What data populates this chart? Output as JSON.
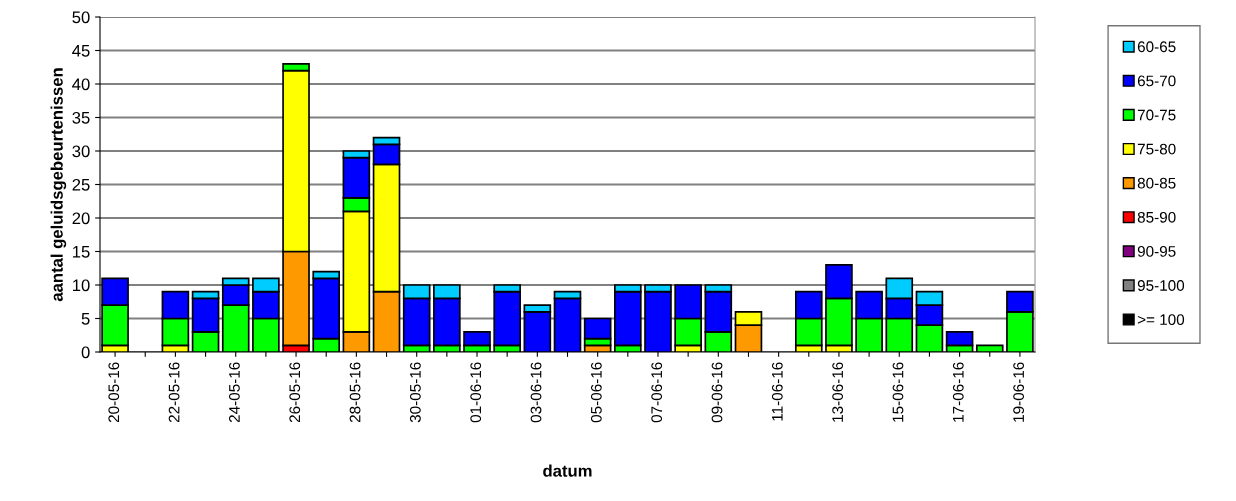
{
  "chart_data": {
    "type": "bar",
    "stacked": true,
    "xlabel": "datum",
    "ylabel": "aantal geluidsgebeurtenissen",
    "categories": [
      "20-05-16",
      null,
      "22-05-16",
      null,
      "24-05-16",
      null,
      "26-05-16",
      null,
      "28-05-16",
      null,
      "30-05-16",
      null,
      "01-06-16",
      null,
      "03-06-16",
      null,
      "05-06-16",
      null,
      "07-06-16",
      null,
      "09-06-16",
      null,
      "11-06-16",
      null,
      "13-06-16",
      null,
      "15-06-16",
      null,
      "17-06-16",
      null,
      "19-06-16"
    ],
    "ylim": [
      0,
      50
    ],
    "yticks": [
      0,
      5,
      10,
      15,
      20,
      25,
      30,
      35,
      40,
      45,
      50
    ],
    "grid": "y",
    "legend": "right",
    "series": [
      {
        "name": ">= 100",
        "color": "#000000",
        "values": [
          0,
          0,
          0,
          0,
          0,
          0,
          0,
          0,
          0,
          0,
          0,
          0,
          0,
          0,
          0,
          0,
          0,
          0,
          0,
          0,
          0,
          0,
          0,
          0,
          0,
          0,
          0,
          0,
          0,
          0,
          0
        ]
      },
      {
        "name": "95-100",
        "color": "#808080",
        "values": [
          0,
          0,
          0,
          0,
          0,
          0,
          0,
          0,
          0,
          0,
          0,
          0,
          0,
          0,
          0,
          0,
          0,
          0,
          0,
          0,
          0,
          0,
          0,
          0,
          0,
          0,
          0,
          0,
          0,
          0,
          0
        ]
      },
      {
        "name": "90-95",
        "color": "#800080",
        "values": [
          0,
          0,
          0,
          0,
          0,
          0,
          0,
          0,
          0,
          0,
          0,
          0,
          0,
          0,
          0,
          0,
          0,
          0,
          0,
          0,
          0,
          0,
          0,
          0,
          0,
          0,
          0,
          0,
          0,
          0,
          0
        ]
      },
      {
        "name": "85-90",
        "color": "#ff0000",
        "values": [
          0,
          0,
          0,
          0,
          0,
          0,
          1,
          0,
          0,
          0,
          0,
          0,
          0,
          0,
          0,
          0,
          0,
          0,
          0,
          0,
          0,
          0,
          0,
          0,
          0,
          0,
          0,
          0,
          0,
          0,
          0
        ]
      },
      {
        "name": "80-85",
        "color": "#ff9900",
        "values": [
          0,
          0,
          0,
          0,
          0,
          0,
          14,
          0,
          3,
          9,
          0,
          0,
          0,
          0,
          0,
          0,
          1,
          0,
          0,
          0,
          0,
          4,
          0,
          0,
          0,
          0,
          0,
          0,
          0,
          0,
          0
        ]
      },
      {
        "name": "75-80",
        "color": "#ffff00",
        "values": [
          1,
          0,
          1,
          0,
          0,
          0,
          27,
          0,
          18,
          19,
          0,
          0,
          0,
          0,
          0,
          0,
          0,
          0,
          0,
          1,
          0,
          2,
          0,
          1,
          1,
          0,
          0,
          0,
          0,
          0,
          0
        ]
      },
      {
        "name": "70-75",
        "color": "#00ff00",
        "values": [
          6,
          0,
          4,
          3,
          7,
          5,
          1,
          2,
          2,
          0,
          1,
          1,
          1,
          1,
          0,
          0,
          1,
          1,
          0,
          4,
          3,
          0,
          0,
          4,
          7,
          5,
          5,
          4,
          1,
          1,
          6
        ]
      },
      {
        "name": "65-70",
        "color": "#0000ff",
        "values": [
          4,
          0,
          4,
          5,
          3,
          4,
          0,
          9,
          6,
          3,
          7,
          7,
          2,
          8,
          6,
          8,
          3,
          8,
          9,
          5,
          6,
          0,
          0,
          4,
          5,
          4,
          3,
          3,
          2,
          0,
          3
        ]
      },
      {
        "name": "60-65",
        "color": "#00ccff",
        "values": [
          0,
          0,
          0,
          1,
          1,
          2,
          0,
          1,
          1,
          1,
          2,
          2,
          0,
          1,
          1,
          1,
          0,
          1,
          1,
          0,
          1,
          0,
          0,
          0,
          0,
          0,
          3,
          2,
          0,
          0,
          0
        ]
      }
    ]
  }
}
